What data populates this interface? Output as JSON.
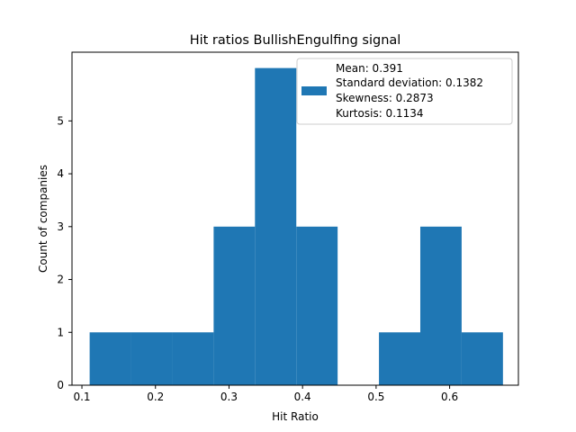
{
  "chart_data": {
    "type": "bar",
    "title": "Hit ratios BullishEngulfing signal",
    "xlabel": "Hit Ratio",
    "ylabel": "Count of companies",
    "xlim": [
      0.0865,
      0.6935
    ],
    "ylim": [
      0,
      6.3
    ],
    "xticks": [
      0.1,
      0.2,
      0.3,
      0.4,
      0.5,
      0.6
    ],
    "xtick_labels": [
      "0.1",
      "0.2",
      "0.3",
      "0.4",
      "0.5",
      "0.6"
    ],
    "yticks": [
      0,
      1,
      2,
      3,
      4,
      5
    ],
    "ytick_labels": [
      "0",
      "1",
      "2",
      "3",
      "4",
      "5"
    ],
    "bin_edges": [
      0.1105,
      0.1667,
      0.2229,
      0.2791,
      0.3353,
      0.3915,
      0.4477,
      0.5039,
      0.5601,
      0.6163,
      0.6725
    ],
    "counts": [
      1,
      1,
      1,
      3,
      6,
      3,
      0,
      1,
      3,
      1
    ],
    "bar_color": "#1f77b4",
    "legend": {
      "placement": "upper right",
      "lines": [
        "Mean: 0.391",
        "Standard deviation: 0.1382",
        "Skewness: 0.2873",
        "Kurtosis: 0.1134"
      ]
    },
    "grid": false
  }
}
